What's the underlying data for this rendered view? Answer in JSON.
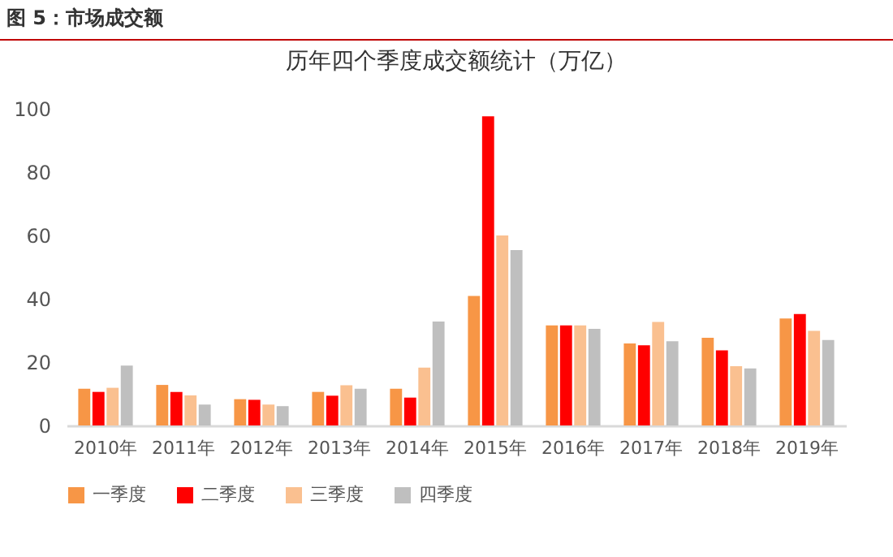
{
  "chart_data": {
    "type": "bar",
    "title": "历年四个季度成交额统计（万亿）",
    "annotations": [
      "图 5：市场成交额"
    ],
    "categories": [
      "2010年",
      "2011年",
      "2012年",
      "2013年",
      "2014年",
      "2015年",
      "2016年",
      "2017年",
      "2018年",
      "2019年"
    ],
    "series": [
      {
        "name": "一季度",
        "color": "#f79646",
        "values": [
          11.6,
          12.8,
          8.3,
          10.6,
          11.6,
          40.9,
          31.6,
          25.9,
          27.7,
          33.8
        ]
      },
      {
        "name": "二季度",
        "color": "#ff0000",
        "values": [
          10.6,
          10.6,
          8.1,
          9.4,
          8.8,
          97.6,
          31.6,
          25.3,
          23.7,
          35.2
        ]
      },
      {
        "name": "三季度",
        "color": "#fac090",
        "values": [
          11.9,
          9.5,
          6.6,
          12.7,
          18.3,
          60,
          31.6,
          32.7,
          18.7,
          29.9
        ]
      },
      {
        "name": "四季度",
        "color": "#bfbfbf",
        "values": [
          18.9,
          6.6,
          6.1,
          11.6,
          32.8,
          55.4,
          30.5,
          26.6,
          18,
          27
        ]
      }
    ],
    "ylim": [
      0,
      100
    ],
    "yticks": [
      0,
      20,
      40,
      60,
      80,
      100
    ],
    "legend": "bottom"
  }
}
